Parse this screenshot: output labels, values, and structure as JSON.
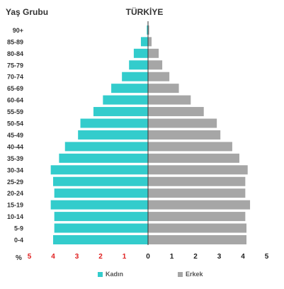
{
  "title": "TÜRKİYE",
  "y_axis_title": "Yaş Grubu",
  "x_axis_unit": "%",
  "legend": [
    {
      "label": "Kadın",
      "color": "#33cccc"
    },
    {
      "label": "Erkek",
      "color": "#a6a6a6"
    }
  ],
  "chart_data": {
    "type": "bar",
    "orientation": "horizontal-population-pyramid",
    "categories": [
      "0-4",
      "5-9",
      "10-14",
      "15-19",
      "20-24",
      "25-29",
      "30-34",
      "35-39",
      "40-44",
      "45-49",
      "50-54",
      "55-59",
      "60-64",
      "65-69",
      "70-74",
      "75-79",
      "80-84",
      "85-89",
      "90+"
    ],
    "series": [
      {
        "name": "Kadın",
        "side": "left",
        "color": "#33cccc",
        "values": [
          4.0,
          3.95,
          3.95,
          4.1,
          3.95,
          4.0,
          4.1,
          3.75,
          3.5,
          2.95,
          2.85,
          2.3,
          1.9,
          1.55,
          1.1,
          0.8,
          0.6,
          0.3,
          0.05
        ]
      },
      {
        "name": "Erkek",
        "side": "right",
        "color": "#a6a6a6",
        "values": [
          4.15,
          4.15,
          4.1,
          4.3,
          4.1,
          4.1,
          4.2,
          3.85,
          3.55,
          3.05,
          2.9,
          2.35,
          1.8,
          1.3,
          0.9,
          0.6,
          0.45,
          0.15,
          0.05
        ]
      }
    ],
    "x_ticks_left": [
      "5",
      "4",
      "3",
      "2",
      "1"
    ],
    "x_ticks_right": [
      "0",
      "1",
      "2",
      "3",
      "4",
      "5"
    ],
    "xlim": [
      -5,
      5
    ],
    "grid": false,
    "legend_position": "bottom"
  }
}
